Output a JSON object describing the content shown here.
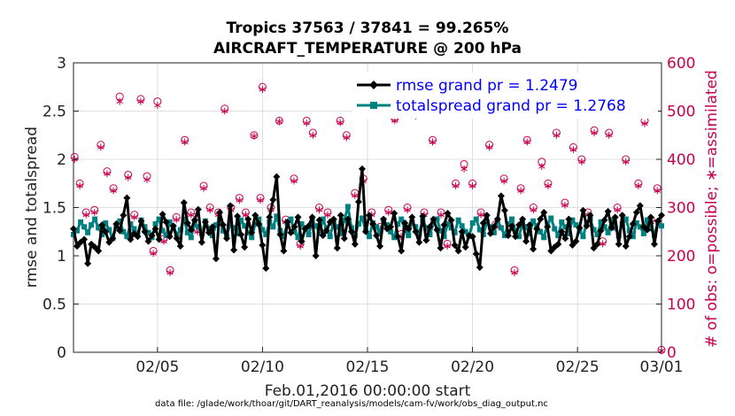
{
  "chart_data": {
    "type": "line",
    "title_line1": "Tropics 37563 / 37841 = 99.265%",
    "title_line2": "AIRCRAFT_TEMPERATURE @ 200 hPa",
    "ylabel_left": "rmse and totalspread",
    "ylabel_right": "# of obs: o=possible; ∗=assimilated",
    "xlabel": "Feb.01,2016 00:00:00 start",
    "footnote": "data file: /glade/work/thoar/git/DART_reanalysis/models/cam-fv/work/obs_diag_output.nc",
    "xlim": [
      1,
      29
    ],
    "ylim_left": [
      0,
      3
    ],
    "ylim_right": [
      0,
      600
    ],
    "left_ticks": [
      "0",
      "0.5",
      "1",
      "1.5",
      "2",
      "2.5",
      "3"
    ],
    "right_ticks": [
      "0",
      "100",
      "200",
      "300",
      "400",
      "500",
      "600"
    ],
    "x_ticks": [
      {
        "value": 5,
        "label": "02/05"
      },
      {
        "value": 10,
        "label": "02/10"
      },
      {
        "value": 15,
        "label": "02/15"
      },
      {
        "value": 20,
        "label": "02/20"
      },
      {
        "value": 25,
        "label": "02/25"
      },
      {
        "value": 29,
        "label": "03/01"
      }
    ],
    "colors": {
      "rmse": "#000000",
      "totalspread": "#008080",
      "obs": "#c8004f",
      "legend_text": "#0000ff"
    },
    "series": [
      {
        "name": "rmse",
        "legend": "rmse grand pr = 1.2479",
        "axis": "left",
        "values": [
          1.28,
          1.1,
          1.14,
          1.17,
          0.92,
          1.12,
          1.09,
          1.05,
          1.32,
          1.25,
          1.14,
          1.18,
          1.33,
          1.26,
          1.42,
          1.6,
          1.17,
          1.23,
          1.2,
          1.36,
          1.25,
          1.15,
          1.21,
          1.28,
          1.17,
          1.43,
          1.35,
          1.2,
          1.31,
          1.18,
          1.1,
          1.55,
          1.34,
          1.27,
          1.37,
          1.48,
          1.14,
          1.35,
          1.24,
          1.3,
          0.97,
          1.45,
          1.32,
          1.18,
          1.52,
          1.06,
          1.41,
          1.22,
          1.09,
          1.38,
          1.24,
          1.42,
          1.33,
          1.11,
          0.87,
          1.4,
          1.58,
          1.82,
          1.22,
          1.05,
          1.35,
          1.24,
          1.3,
          1.4,
          1.15,
          1.28,
          1.31,
          1.4,
          1.0,
          1.37,
          1.21,
          1.26,
          1.35,
          1.38,
          1.08,
          1.42,
          1.18,
          1.38,
          1.25,
          1.12,
          1.56,
          1.9,
          1.25,
          1.42,
          1.33,
          1.21,
          1.1,
          1.38,
          1.28,
          1.3,
          1.44,
          1.2,
          1.05,
          1.34,
          1.28,
          1.4,
          1.25,
          1.14,
          1.41,
          1.16,
          1.3,
          1.38,
          1.27,
          1.08,
          1.32,
          1.44,
          1.37,
          1.11,
          1.05,
          1.25,
          1.09,
          1.21,
          1.2,
          1.02,
          0.88,
          1.34,
          1.42,
          1.23,
          1.3,
          1.38,
          1.62,
          1.47,
          1.21,
          1.31,
          1.2,
          1.32,
          1.38,
          1.15,
          1.32,
          1.07,
          1.28,
          1.38,
          1.45,
          1.3,
          1.05,
          1.09,
          1.12,
          1.25,
          1.18,
          1.38,
          1.11,
          1.15,
          1.29,
          1.47,
          1.31,
          1.42,
          1.08,
          1.12,
          1.26,
          1.37,
          1.46,
          1.29,
          1.4,
          1.12,
          1.42,
          1.1,
          1.2,
          1.33,
          1.45,
          1.52,
          1.3,
          1.27,
          1.4,
          1.12,
          1.36,
          1.42
        ]
      },
      {
        "name": "totalspread",
        "legend": "totalspread grand pr = 1.2768",
        "axis": "left",
        "values": [
          1.22,
          1.26,
          1.35,
          1.3,
          1.24,
          1.32,
          1.38,
          1.29,
          1.22,
          1.34,
          1.27,
          1.18,
          1.3,
          1.36,
          1.25,
          1.2,
          1.33,
          1.28,
          1.22,
          1.37,
          1.3,
          1.24,
          1.19,
          1.33,
          1.38,
          1.26,
          1.21,
          1.35,
          1.3,
          1.22,
          1.27,
          1.38,
          1.24,
          1.19,
          1.34,
          1.3,
          1.23,
          1.36,
          1.28,
          1.21,
          1.32,
          1.38,
          1.26,
          1.2,
          1.34,
          1.29,
          1.23,
          1.37,
          1.31,
          1.24,
          1.19,
          1.33,
          1.38,
          1.27,
          1.22,
          1.35,
          1.3,
          1.41,
          1.26,
          1.2,
          1.34,
          1.38,
          1.25,
          1.19,
          1.33,
          1.29,
          1.22,
          1.36,
          1.31,
          1.24,
          1.38,
          1.28,
          1.2,
          1.35,
          1.3,
          1.23,
          1.37,
          1.51,
          1.29,
          1.21,
          1.33,
          1.39,
          1.26,
          1.2,
          1.34,
          1.3,
          1.24,
          1.37,
          1.32,
          1.25,
          1.19,
          1.33,
          1.38,
          1.27,
          1.21,
          1.35,
          1.3,
          1.23,
          1.37,
          1.29,
          1.22,
          1.34,
          1.38,
          1.26,
          1.2,
          1.33,
          1.29,
          1.24,
          1.37,
          1.31,
          1.25,
          1.2,
          1.34,
          1.38,
          1.27,
          1.22,
          1.35,
          1.3,
          1.24,
          1.37,
          1.29,
          1.21,
          1.33,
          1.38,
          1.26,
          1.2,
          1.34,
          1.3,
          1.23,
          1.36,
          1.31,
          1.25,
          1.19,
          1.33,
          1.39,
          1.28,
          1.21,
          1.35,
          1.3,
          1.23,
          1.37,
          1.32,
          1.26,
          1.2,
          1.34,
          1.38,
          1.27,
          1.22,
          1.35,
          1.3,
          1.24,
          1.37,
          1.29,
          1.21,
          1.33,
          1.38,
          1.26,
          1.2,
          1.34,
          1.3,
          1.23,
          1.37,
          1.28,
          1.22,
          1.35,
          1.31
        ]
      },
      {
        "name": "obs_possible",
        "marker": "o",
        "axis": "right",
        "points": [
          [
            1.05,
            405
          ],
          [
            1.3,
            350
          ],
          [
            1.6,
            290
          ],
          [
            2.0,
            295
          ],
          [
            2.3,
            430
          ],
          [
            2.6,
            375
          ],
          [
            2.9,
            340
          ],
          [
            3.2,
            530
          ],
          [
            3.6,
            368
          ],
          [
            3.9,
            285
          ],
          [
            4.2,
            525
          ],
          [
            4.5,
            365
          ],
          [
            4.8,
            210
          ],
          [
            5.0,
            520
          ],
          [
            5.3,
            235
          ],
          [
            5.6,
            170
          ],
          [
            5.9,
            280
          ],
          [
            6.3,
            440
          ],
          [
            6.6,
            290
          ],
          [
            6.9,
            255
          ],
          [
            7.2,
            345
          ],
          [
            7.5,
            300
          ],
          [
            7.9,
            290
          ],
          [
            8.2,
            505
          ],
          [
            8.5,
            300
          ],
          [
            8.9,
            320
          ],
          [
            9.2,
            290
          ],
          [
            9.6,
            450
          ],
          [
            9.9,
            320
          ],
          [
            10.0,
            550
          ],
          [
            10.4,
            300
          ],
          [
            10.8,
            480
          ],
          [
            11.1,
            275
          ],
          [
            11.5,
            360
          ],
          [
            11.8,
            225
          ],
          [
            12.1,
            480
          ],
          [
            12.4,
            455
          ],
          [
            12.7,
            300
          ],
          [
            13.1,
            290
          ],
          [
            13.3,
            270
          ],
          [
            13.7,
            480
          ],
          [
            14.0,
            450
          ],
          [
            14.4,
            330
          ],
          [
            14.8,
            360
          ],
          [
            15.2,
            290
          ],
          [
            15.6,
            260
          ],
          [
            16.0,
            295
          ],
          [
            16.3,
            485
          ],
          [
            16.6,
            245
          ],
          [
            16.9,
            300
          ],
          [
            17.3,
            495
          ],
          [
            17.7,
            290
          ],
          [
            18.1,
            440
          ],
          [
            18.5,
            290
          ],
          [
            18.8,
            225
          ],
          [
            19.2,
            350
          ],
          [
            19.6,
            390
          ],
          [
            20.0,
            350
          ],
          [
            20.4,
            290
          ],
          [
            20.8,
            430
          ],
          [
            21.1,
            265
          ],
          [
            21.5,
            360
          ],
          [
            22.0,
            170
          ],
          [
            22.3,
            340
          ],
          [
            22.6,
            440
          ],
          [
            22.9,
            300
          ],
          [
            23.3,
            395
          ],
          [
            23.6,
            350
          ],
          [
            24.0,
            455
          ],
          [
            24.4,
            310
          ],
          [
            24.8,
            425
          ],
          [
            25.2,
            400
          ],
          [
            25.5,
            290
          ],
          [
            25.8,
            460
          ],
          [
            26.2,
            230
          ],
          [
            26.5,
            455
          ],
          [
            26.9,
            300
          ],
          [
            27.3,
            400
          ],
          [
            27.6,
            250
          ],
          [
            27.9,
            350
          ],
          [
            28.2,
            480
          ],
          [
            28.5,
            275
          ],
          [
            28.8,
            340
          ],
          [
            29.0,
            5
          ]
        ]
      },
      {
        "name": "obs_assimilated",
        "marker": "*",
        "axis": "right",
        "points": [
          [
            1.05,
            400
          ],
          [
            1.3,
            345
          ],
          [
            1.6,
            285
          ],
          [
            2.0,
            290
          ],
          [
            2.3,
            425
          ],
          [
            2.6,
            370
          ],
          [
            2.9,
            335
          ],
          [
            3.2,
            520
          ],
          [
            3.6,
            362
          ],
          [
            3.9,
            280
          ],
          [
            4.2,
            520
          ],
          [
            4.5,
            358
          ],
          [
            4.8,
            205
          ],
          [
            5.0,
            512
          ],
          [
            5.3,
            230
          ],
          [
            5.6,
            165
          ],
          [
            5.9,
            275
          ],
          [
            6.3,
            436
          ],
          [
            6.6,
            285
          ],
          [
            6.9,
            250
          ],
          [
            7.2,
            340
          ],
          [
            7.5,
            295
          ],
          [
            7.9,
            285
          ],
          [
            8.2,
            500
          ],
          [
            8.5,
            295
          ],
          [
            8.9,
            315
          ],
          [
            9.2,
            285
          ],
          [
            9.6,
            448
          ],
          [
            9.9,
            315
          ],
          [
            10.0,
            545
          ],
          [
            10.4,
            295
          ],
          [
            10.8,
            478
          ],
          [
            11.1,
            270
          ],
          [
            11.5,
            355
          ],
          [
            11.8,
            220
          ],
          [
            12.1,
            475
          ],
          [
            12.4,
            450
          ],
          [
            12.7,
            295
          ],
          [
            13.1,
            285
          ],
          [
            13.3,
            265
          ],
          [
            13.7,
            476
          ],
          [
            14.0,
            445
          ],
          [
            14.4,
            325
          ],
          [
            14.8,
            355
          ],
          [
            15.2,
            285
          ],
          [
            15.6,
            255
          ],
          [
            16.0,
            290
          ],
          [
            16.3,
            480
          ],
          [
            16.6,
            240
          ],
          [
            16.9,
            295
          ],
          [
            17.3,
            490
          ],
          [
            17.7,
            285
          ],
          [
            18.1,
            436
          ],
          [
            18.5,
            285
          ],
          [
            18.8,
            220
          ],
          [
            19.2,
            345
          ],
          [
            19.6,
            380
          ],
          [
            20.0,
            345
          ],
          [
            20.4,
            285
          ],
          [
            20.8,
            425
          ],
          [
            21.1,
            260
          ],
          [
            21.5,
            355
          ],
          [
            22.0,
            165
          ],
          [
            22.3,
            335
          ],
          [
            22.6,
            436
          ],
          [
            22.9,
            295
          ],
          [
            23.3,
            385
          ],
          [
            23.6,
            345
          ],
          [
            24.0,
            450
          ],
          [
            24.4,
            305
          ],
          [
            24.8,
            420
          ],
          [
            25.2,
            395
          ],
          [
            25.5,
            285
          ],
          [
            25.8,
            455
          ],
          [
            26.2,
            225
          ],
          [
            26.5,
            450
          ],
          [
            26.9,
            295
          ],
          [
            27.3,
            395
          ],
          [
            27.6,
            245
          ],
          [
            27.9,
            345
          ],
          [
            28.2,
            474
          ],
          [
            28.5,
            270
          ],
          [
            28.8,
            335
          ],
          [
            29.0,
            3
          ]
        ]
      }
    ]
  }
}
